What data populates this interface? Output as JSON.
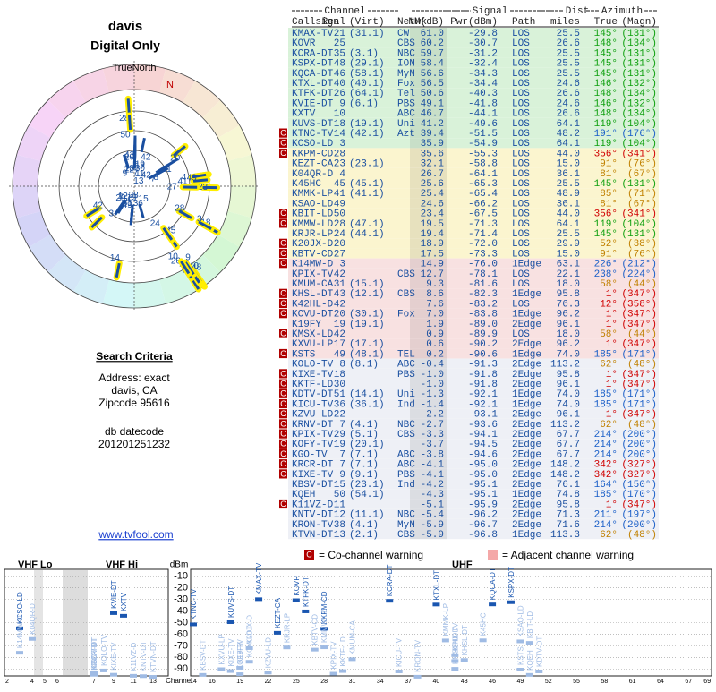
{
  "header": {
    "title": "davis",
    "subtitle": "Digital Only",
    "north_label": "TrueNorth",
    "north_letter": "N"
  },
  "search": {
    "heading": "Search Criteria",
    "lines": [
      "Address: exact",
      "davis, CA",
      "Zipcode 95616",
      "db datecode",
      "201201251232"
    ]
  },
  "link": "www.tvfool.com",
  "table": {
    "group_headers": [
      "Channel",
      "Signal",
      "Dist",
      "Azimuth"
    ],
    "columns": [
      "Callsign",
      "Real",
      "(Virt)",
      "Netwk",
      "NM(dB)",
      "Pwr(dBm)",
      "Path",
      "miles",
      "True",
      "(Magn)"
    ],
    "rows": [
      [
        null,
        "KMAX-TV",
        "21",
        "(31.1)",
        "CW",
        "61.0",
        "-29.8",
        "LOS",
        "25.5",
        "145°",
        "(131°)"
      ],
      [
        null,
        "KOVR",
        "25",
        null,
        "CBS",
        "60.2",
        "-30.7",
        "LOS",
        "26.6",
        "148°",
        "(134°)"
      ],
      [
        null,
        "KCRA-DT",
        "35",
        "(3.1)",
        "NBC",
        "59.7",
        "-31.2",
        "LOS",
        "25.5",
        "145°",
        "(131°)"
      ],
      [
        null,
        "KSPX-DT",
        "48",
        "(29.1)",
        "ION",
        "58.4",
        "-32.4",
        "LOS",
        "25.5",
        "145°",
        "(131°)"
      ],
      [
        null,
        "KQCA-DT",
        "46",
        "(58.1)",
        "MyN",
        "56.6",
        "-34.3",
        "LOS",
        "25.5",
        "145°",
        "(131°)"
      ],
      [
        null,
        "KTXL-DT",
        "40",
        "(40.1)",
        "Fox",
        "56.5",
        "-34.4",
        "LOS",
        "24.6",
        "146°",
        "(132°)"
      ],
      [
        null,
        "KTFK-DT",
        "26",
        "(64.1)",
        "Tel",
        "50.6",
        "-40.3",
        "LOS",
        "26.6",
        "148°",
        "(134°)"
      ],
      [
        null,
        "KVIE-DT",
        "9",
        "(6.1)",
        "PBS",
        "49.1",
        "-41.8",
        "LOS",
        "24.6",
        "146°",
        "(132°)"
      ],
      [
        null,
        "KXTV",
        "10",
        null,
        "ABC",
        "46.7",
        "-44.1",
        "LOS",
        "26.6",
        "148°",
        "(134°)"
      ],
      [
        null,
        "KUVS-DT",
        "18",
        "(19.1)",
        "Uni",
        "41.2",
        "-49.6",
        "LOS",
        "64.1",
        "119°",
        "(104°)"
      ],
      [
        "C",
        "KTNC-TV",
        "14",
        "(42.1)",
        "Azt",
        "39.4",
        "-51.5",
        "LOS",
        "48.2",
        "191°",
        "(176°)"
      ],
      [
        "C",
        "KCSO-LD",
        "3",
        null,
        null,
        "35.9",
        "-54.9",
        "LOS",
        "64.1",
        "119°",
        "(104°)"
      ],
      [
        "C",
        "KKPM-CD",
        "28",
        null,
        null,
        "35.6",
        "-55.3",
        "LOS",
        "44.0",
        "356°",
        "(341°)"
      ],
      [
        null,
        "KEZT-CA",
        "23",
        "(23.1)",
        null,
        "32.1",
        "-58.8",
        "LOS",
        "15.0",
        "91°",
        "(76°)"
      ],
      [
        null,
        "K04QR-D",
        "4",
        null,
        null,
        "26.7",
        "-64.1",
        "LOS",
        "36.1",
        "81°",
        "(67°)"
      ],
      [
        null,
        "K45HC",
        "45",
        "(45.1)",
        null,
        "25.6",
        "-65.3",
        "LOS",
        "25.5",
        "145°",
        "(131°)"
      ],
      [
        null,
        "KMMK-LP",
        "41",
        "(41.1)",
        null,
        "25.4",
        "-65.4",
        "LOS",
        "48.9",
        "85°",
        "(71°)"
      ],
      [
        null,
        "KSAO-LD",
        "49",
        null,
        null,
        "24.6",
        "-66.2",
        "LOS",
        "36.1",
        "81°",
        "(67°)"
      ],
      [
        "C",
        "KBIT-LD",
        "50",
        null,
        null,
        "23.4",
        "-67.5",
        "LOS",
        "44.0",
        "356°",
        "(341°)"
      ],
      [
        "C",
        "KMMW-LD",
        "28",
        "(47.1)",
        null,
        "19.5",
        "-71.3",
        "LOS",
        "64.1",
        "119°",
        "(104°)"
      ],
      [
        null,
        "KRJR-LP",
        "24",
        "(44.1)",
        null,
        "19.4",
        "-71.4",
        "LOS",
        "25.5",
        "145°",
        "(131°)"
      ],
      [
        "C",
        "K20JX-D",
        "20",
        null,
        null,
        "18.9",
        "-72.0",
        "LOS",
        "29.9",
        "52°",
        "(38°)"
      ],
      [
        "C",
        "KBTV-CD",
        "27",
        null,
        null,
        "17.5",
        "-73.3",
        "LOS",
        "15.0",
        "91°",
        "(76°)"
      ],
      [
        "C",
        "K14MW-D",
        "3",
        null,
        null,
        "14.9",
        "-76.0",
        "1Edge",
        "63.1",
        "226°",
        "(212°)"
      ],
      [
        null,
        "KPIX-TV",
        "42",
        null,
        "CBS",
        "12.7",
        "-78.1",
        "LOS",
        "22.1",
        "238°",
        "(224°)"
      ],
      [
        null,
        "KMUM-CA",
        "31",
        "(15.1)",
        null,
        "9.3",
        "-81.6",
        "LOS",
        "18.0",
        "58°",
        "(44°)"
      ],
      [
        "C",
        "KHSL-DT",
        "43",
        "(12.1)",
        "CBS",
        "8.6",
        "-82.3",
        "1Edge",
        "95.8",
        "1°",
        "(347°)"
      ],
      [
        "C",
        "K42HL-D",
        "42",
        null,
        null,
        "7.6",
        "-83.2",
        "LOS",
        "76.3",
        "12°",
        "(358°)"
      ],
      [
        "C",
        "KCVU-DT",
        "20",
        "(30.1)",
        "Fox",
        "7.0",
        "-83.8",
        "1Edge",
        "96.2",
        "1°",
        "(347°)"
      ],
      [
        null,
        "K19FY",
        "19",
        "(19.1)",
        null,
        "1.9",
        "-89.0",
        "2Edge",
        "96.1",
        "1°",
        "(347°)"
      ],
      [
        "C",
        "KMSX-LD",
        "42",
        null,
        null,
        "0.9",
        "-89.9",
        "LOS",
        "18.0",
        "58°",
        "(44°)"
      ],
      [
        null,
        "KXVU-LP",
        "17",
        "(17.1)",
        null,
        "0.6",
        "-90.2",
        "2Edge",
        "96.2",
        "1°",
        "(347°)"
      ],
      [
        "C",
        "KSTS",
        "49",
        "(48.1)",
        "TEL",
        "0.2",
        "-90.6",
        "1Edge",
        "74.0",
        "185°",
        "(171°)"
      ],
      [
        null,
        "KOLO-TV",
        "8",
        "(8.1)",
        "ABC",
        "-0.4",
        "-91.3",
        "2Edge",
        "113.2",
        "62°",
        "(48°)"
      ],
      [
        "C",
        "KIXE-TV",
        "18",
        null,
        "PBS",
        "-1.0",
        "-91.8",
        "2Edge",
        "95.8",
        "1°",
        "(347°)"
      ],
      [
        "C",
        "KKTF-LD",
        "30",
        null,
        null,
        "-1.0",
        "-91.8",
        "2Edge",
        "96.1",
        "1°",
        "(347°)"
      ],
      [
        "C",
        "KDTV-DT",
        "51",
        "(14.1)",
        "Uni",
        "-1.3",
        "-92.1",
        "1Edge",
        "74.0",
        "185°",
        "(171°)"
      ],
      [
        "C",
        "KICU-TV",
        "36",
        "(36.1)",
        "Ind",
        "-1.4",
        "-92.1",
        "1Edge",
        "74.0",
        "185°",
        "(171°)"
      ],
      [
        "C",
        "KZVU-LD",
        "22",
        null,
        null,
        "-2.2",
        "-93.1",
        "2Edge",
        "96.1",
        "1°",
        "(347°)"
      ],
      [
        "C",
        "KRNV-DT",
        "7",
        "(4.1)",
        "NBC",
        "-2.7",
        "-93.6",
        "2Edge",
        "113.2",
        "62°",
        "(48°)"
      ],
      [
        "C",
        "KPIX-TV",
        "29",
        "(5.1)",
        "CBS",
        "-3.3",
        "-94.1",
        "2Edge",
        "67.7",
        "214°",
        "(200°)"
      ],
      [
        "C",
        "KOFY-TV",
        "19",
        "(20.1)",
        null,
        "-3.7",
        "-94.5",
        "2Edge",
        "67.7",
        "214°",
        "(200°)"
      ],
      [
        "C",
        "KGO-TV",
        "7",
        "(7.1)",
        "ABC",
        "-3.8",
        "-94.6",
        "2Edge",
        "67.7",
        "214°",
        "(200°)"
      ],
      [
        "C",
        "KRCR-DT",
        "7",
        "(7.1)",
        "ABC",
        "-4.1",
        "-95.0",
        "2Edge",
        "148.2",
        "342°",
        "(327°)"
      ],
      [
        "C",
        "KIXE-TV",
        "9",
        "(9.1)",
        "PBS",
        "-4.1",
        "-95.0",
        "2Edge",
        "148.2",
        "342°",
        "(327°)"
      ],
      [
        null,
        "KBSV-DT",
        "15",
        "(23.1)",
        "Ind",
        "-4.2",
        "-95.1",
        "2Edge",
        "76.1",
        "164°",
        "(150°)"
      ],
      [
        null,
        "KQEH",
        "50",
        "(54.1)",
        null,
        "-4.3",
        "-95.1",
        "1Edge",
        "74.8",
        "185°",
        "(170°)"
      ],
      [
        "C",
        "K11VZ-D",
        "11",
        null,
        null,
        "-5.1",
        "-95.9",
        "2Edge",
        "95.8",
        "1°",
        "(347°)"
      ],
      [
        null,
        "KNTV-DT",
        "12",
        "(11.1)",
        "NBC",
        "-5.4",
        "-96.2",
        "2Edge",
        "71.3",
        "211°",
        "(197°)"
      ],
      [
        null,
        "KRON-TV",
        "38",
        "(4.1)",
        "MyN",
        "-5.9",
        "-96.7",
        "2Edge",
        "71.6",
        "214°",
        "(200°)"
      ],
      [
        null,
        "KTVN-DT",
        "13",
        "(2.1)",
        "CBS",
        "-5.9",
        "-96.8",
        "1Edge",
        "113.3",
        "62°",
        "(48°)"
      ]
    ]
  },
  "legend": {
    "co_mark": "C",
    "co_channel": "= Co-channel warning",
    "adjacent": "= Adjacent channel warning"
  },
  "spectrum": {
    "bands": [
      "VHF Lo",
      "VHF Hi",
      "UHF"
    ],
    "y_label": "dBm",
    "x_label": "Channel",
    "ylim": [
      -96,
      -4
    ],
    "yticks": [
      -10,
      -20,
      -30,
      -40,
      -50,
      -60,
      -70,
      -80,
      -90
    ],
    "vhf_ticks": [
      2,
      4,
      5,
      6,
      7,
      9,
      11,
      13
    ],
    "uhf_ticks": [
      14,
      16,
      19,
      22,
      25,
      28,
      31,
      34,
      37,
      40,
      43,
      46,
      49,
      52,
      55,
      58,
      61,
      64,
      67,
      69
    ]
  }
}
